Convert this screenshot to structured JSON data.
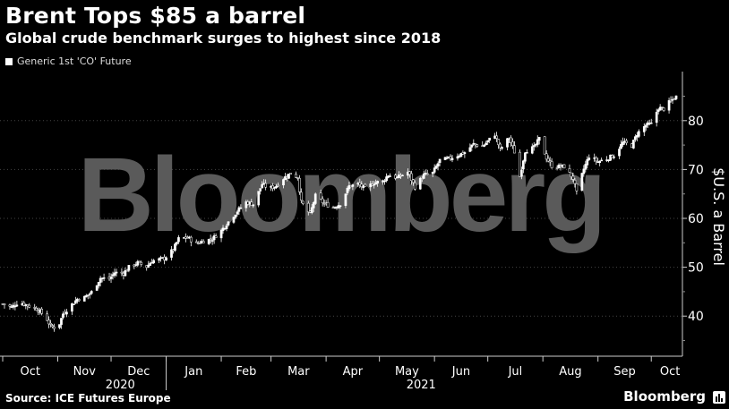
{
  "header": {
    "title": "Brent Tops $85 a barrel",
    "subtitle": "Global crude benchmark surges to highest since 2018"
  },
  "watermark": "Bloomberg",
  "footer": {
    "source": "Source: ICE Futures Europe",
    "brand": "Bloomberg",
    "brand_icon": "bar-chart-icon"
  },
  "colors": {
    "background": "#000000",
    "series": "#ffffff",
    "grid": "#3a3a3a",
    "watermark": "#5a5a5a"
  },
  "chart_data": {
    "type": "candlestick",
    "title": "Brent Tops $85 a barrel",
    "subtitle": "Global crude benchmark surges to highest since 2018",
    "series": [
      {
        "name": "Generic 1st 'CO' Future"
      }
    ],
    "legend_position": "top-left",
    "ylabel": "$U.S. a Barrel",
    "ylim": [
      30,
      90
    ],
    "yticks": [
      40,
      50,
      60,
      70,
      80
    ],
    "grid": "horizontal dotted",
    "x_month_labels": [
      "Oct",
      "Nov",
      "Dec",
      "Jan",
      "Feb",
      "Mar",
      "Apr",
      "May",
      "Jun",
      "Jul",
      "Aug",
      "Sep",
      "Oct"
    ],
    "x_year_labels": [
      "2020",
      "2021"
    ],
    "x_range": [
      "2020-10-01",
      "2021-10-15"
    ],
    "points": [
      [
        "2020-10-01",
        42.5
      ],
      [
        "2020-10-06",
        41.8
      ],
      [
        "2020-10-10",
        42.9
      ],
      [
        "2020-10-15",
        42.2
      ],
      [
        "2020-10-20",
        41.5
      ],
      [
        "2020-10-25",
        40.0
      ],
      [
        "2020-10-28",
        37.9
      ],
      [
        "2020-11-01",
        37.5
      ],
      [
        "2020-11-04",
        40.5
      ],
      [
        "2020-11-09",
        42.4
      ],
      [
        "2020-11-12",
        43.5
      ],
      [
        "2020-11-16",
        43.8
      ],
      [
        "2020-11-20",
        44.9
      ],
      [
        "2020-11-25",
        47.8
      ],
      [
        "2020-11-30",
        47.6
      ],
      [
        "2020-12-03",
        48.9
      ],
      [
        "2020-12-08",
        48.8
      ],
      [
        "2020-12-11",
        50.0
      ],
      [
        "2020-12-16",
        50.9
      ],
      [
        "2020-12-21",
        50.1
      ],
      [
        "2020-12-24",
        51.3
      ],
      [
        "2020-12-31",
        51.8
      ],
      [
        "2021-01-05",
        53.6
      ],
      [
        "2021-01-08",
        55.8
      ],
      [
        "2021-01-13",
        56.1
      ],
      [
        "2021-01-18",
        54.8
      ],
      [
        "2021-01-22",
        55.4
      ],
      [
        "2021-01-27",
        55.8
      ],
      [
        "2021-02-01",
        57.5
      ],
      [
        "2021-02-05",
        59.3
      ],
      [
        "2021-02-10",
        61.5
      ],
      [
        "2021-02-15",
        63.3
      ],
      [
        "2021-02-19",
        62.9
      ],
      [
        "2021-02-24",
        67.0
      ],
      [
        "2021-02-28",
        66.1
      ],
      [
        "2021-03-04",
        66.7
      ],
      [
        "2021-03-08",
        68.2
      ],
      [
        "2021-03-12",
        69.2
      ],
      [
        "2021-03-16",
        68.4
      ],
      [
        "2021-03-18",
        63.3
      ],
      [
        "2021-03-23",
        60.8
      ],
      [
        "2021-03-26",
        64.6
      ],
      [
        "2021-03-31",
        63.0
      ],
      [
        "2021-04-05",
        62.2
      ],
      [
        "2021-04-09",
        63.0
      ],
      [
        "2021-04-14",
        66.6
      ],
      [
        "2021-04-19",
        67.0
      ],
      [
        "2021-04-23",
        66.1
      ],
      [
        "2021-04-28",
        67.3
      ],
      [
        "2021-05-03",
        67.6
      ],
      [
        "2021-05-06",
        68.9
      ],
      [
        "2021-05-11",
        68.3
      ],
      [
        "2021-05-17",
        69.5
      ],
      [
        "2021-05-21",
        66.4
      ],
      [
        "2021-05-26",
        68.9
      ],
      [
        "2021-05-31",
        69.3
      ],
      [
        "2021-06-04",
        71.9
      ],
      [
        "2021-06-09",
        72.2
      ],
      [
        "2021-06-14",
        72.9
      ],
      [
        "2021-06-18",
        73.5
      ],
      [
        "2021-06-23",
        75.2
      ],
      [
        "2021-06-28",
        74.7
      ],
      [
        "2021-07-01",
        75.8
      ],
      [
        "2021-07-05",
        77.2
      ],
      [
        "2021-07-08",
        74.1
      ],
      [
        "2021-07-13",
        76.5
      ],
      [
        "2021-07-16",
        73.6
      ],
      [
        "2021-07-19",
        68.6
      ],
      [
        "2021-07-22",
        73.8
      ],
      [
        "2021-07-27",
        74.5
      ],
      [
        "2021-07-30",
        76.3
      ],
      [
        "2021-08-03",
        72.4
      ],
      [
        "2021-08-06",
        70.7
      ],
      [
        "2021-08-10",
        70.6
      ],
      [
        "2021-08-13",
        70.6
      ],
      [
        "2021-08-18",
        68.2
      ],
      [
        "2021-08-20",
        65.2
      ],
      [
        "2021-08-24",
        70.1
      ],
      [
        "2021-08-27",
        72.7
      ],
      [
        "2021-09-01",
        71.6
      ],
      [
        "2021-09-06",
        72.2
      ],
      [
        "2021-09-10",
        72.9
      ],
      [
        "2021-09-15",
        75.5
      ],
      [
        "2021-09-20",
        74.9
      ],
      [
        "2021-09-23",
        77.3
      ],
      [
        "2021-09-28",
        79.1
      ],
      [
        "2021-10-01",
        79.3
      ],
      [
        "2021-10-05",
        82.6
      ],
      [
        "2021-10-08",
        82.4
      ],
      [
        "2021-10-11",
        83.7
      ],
      [
        "2021-10-15",
        84.9
      ]
    ]
  }
}
